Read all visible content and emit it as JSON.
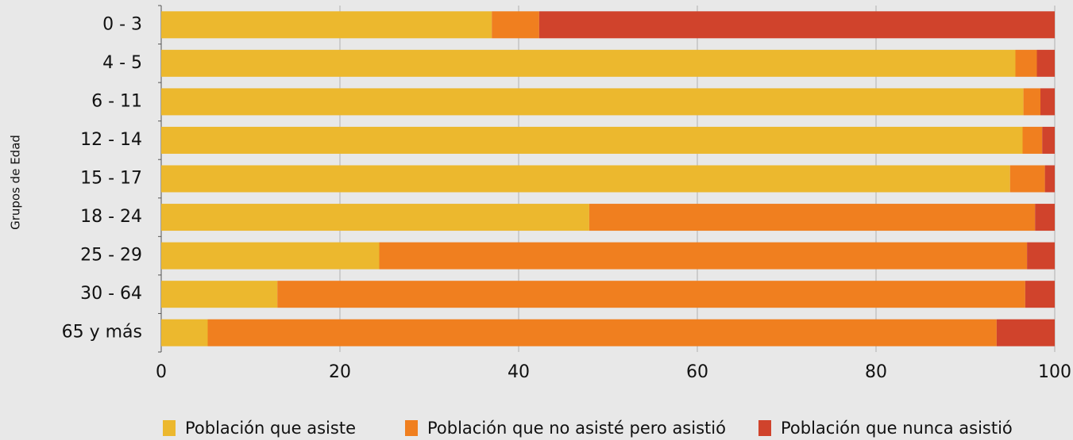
{
  "chart_data": {
    "type": "stacked_barh",
    "y_label": "Grupos de Edad",
    "categories": [
      "0 - 3",
      "4 - 5",
      "6 - 11",
      "12 - 14",
      "15 - 17",
      "18 - 24",
      "25 - 29",
      "30 - 64",
      "65 y más"
    ],
    "series": [
      {
        "name": "Población que asiste",
        "color": "#ecb82e",
        "values": [
          37.0,
          95.6,
          96.5,
          96.4,
          95.0,
          47.9,
          24.4,
          13.0,
          5.2
        ]
      },
      {
        "name": "Población que no asisté pero asistió",
        "color": "#f07f1f",
        "values": [
          5.3,
          2.4,
          1.9,
          2.2,
          3.9,
          49.9,
          72.5,
          83.7,
          88.3
        ]
      },
      {
        "name": "Población que nunca asistió",
        "color": "#d0432c",
        "values": [
          57.7,
          2.0,
          1.6,
          1.4,
          1.1,
          2.2,
          3.1,
          3.3,
          6.5
        ]
      }
    ],
    "xlim": [
      0,
      100
    ],
    "xticks": [
      0,
      20,
      40,
      60,
      80,
      100
    ],
    "grid": true,
    "legend": "bottom"
  }
}
